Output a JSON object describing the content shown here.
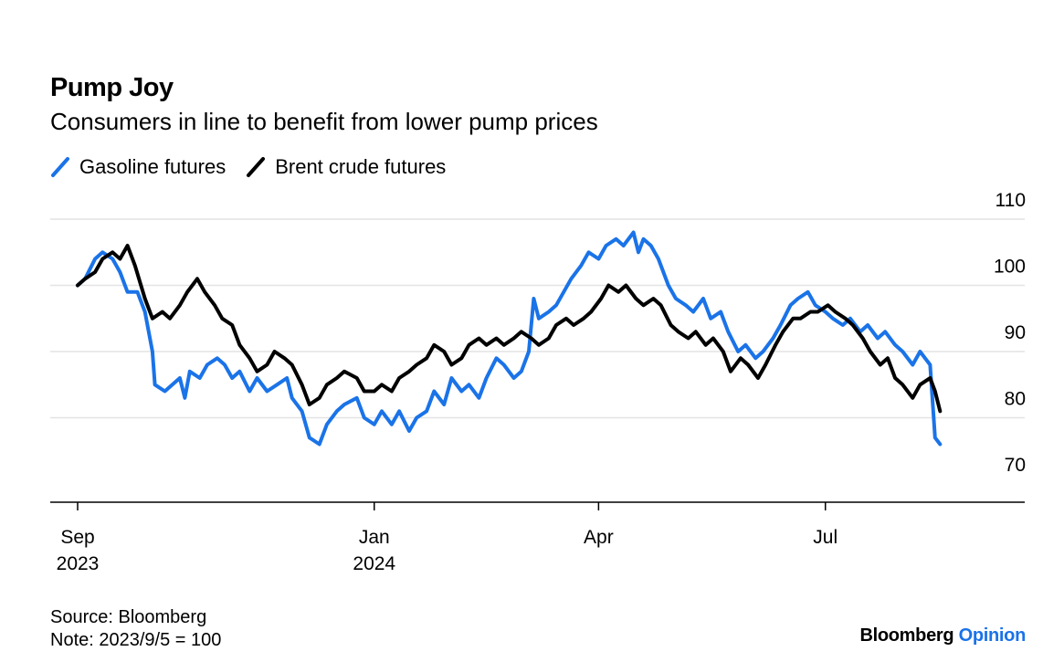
{
  "header": {
    "title": "Pump Joy",
    "subtitle": "Consumers in line to benefit from lower pump prices"
  },
  "legend": {
    "items": [
      {
        "label": "Gasoline futures",
        "color": "#1a73e8"
      },
      {
        "label": "Brent crude futures",
        "color": "#000000"
      }
    ]
  },
  "footer": {
    "source": "Source: Bloomberg",
    "note": "Note: 2023/9/5 = 100",
    "brand_main": "Bloomberg",
    "brand_accent": "Opinion"
  },
  "chart_data": {
    "type": "line",
    "title": "Pump Joy",
    "subtitle": "Consumers in line to benefit from lower pump prices",
    "xlabel": "",
    "ylabel": "",
    "ylim": [
      70,
      110
    ],
    "yticks": [
      70,
      80,
      90,
      100,
      110
    ],
    "y_axis_position": "right",
    "grid": "horizontal",
    "legend_position": "top-left",
    "xlim": [
      "2023-09-05",
      "2024-08-17"
    ],
    "xticks": [
      {
        "date": "2023-09-05",
        "line1": "Sep",
        "line2": "2023"
      },
      {
        "date": "2024-01-02",
        "line1": "Jan",
        "line2": "2024"
      },
      {
        "date": "2024-04-01",
        "line1": "Apr",
        "line2": ""
      },
      {
        "date": "2024-07-01",
        "line1": "Jul",
        "line2": ""
      }
    ],
    "series": [
      {
        "name": "Gasoline futures",
        "color": "#1a73e8",
        "points": [
          [
            "2023-09-05",
            100
          ],
          [
            "2023-09-08",
            101
          ],
          [
            "2023-09-12",
            104
          ],
          [
            "2023-09-15",
            105
          ],
          [
            "2023-09-19",
            104
          ],
          [
            "2023-09-22",
            102
          ],
          [
            "2023-09-25",
            99
          ],
          [
            "2023-09-29",
            99
          ],
          [
            "2023-10-02",
            96
          ],
          [
            "2023-10-05",
            90
          ],
          [
            "2023-10-06",
            85
          ],
          [
            "2023-10-10",
            84
          ],
          [
            "2023-10-13",
            85
          ],
          [
            "2023-10-16",
            86
          ],
          [
            "2023-10-18",
            83
          ],
          [
            "2023-10-20",
            87
          ],
          [
            "2023-10-24",
            86
          ],
          [
            "2023-10-27",
            88
          ],
          [
            "2023-10-31",
            89
          ],
          [
            "2023-11-03",
            88
          ],
          [
            "2023-11-06",
            86
          ],
          [
            "2023-11-09",
            87
          ],
          [
            "2023-11-13",
            84
          ],
          [
            "2023-11-16",
            86
          ],
          [
            "2023-11-20",
            84
          ],
          [
            "2023-11-24",
            85
          ],
          [
            "2023-11-28",
            86
          ],
          [
            "2023-11-30",
            83
          ],
          [
            "2023-12-04",
            81
          ],
          [
            "2023-12-07",
            77
          ],
          [
            "2023-12-11",
            76
          ],
          [
            "2023-12-14",
            79
          ],
          [
            "2023-12-18",
            81
          ],
          [
            "2023-12-21",
            82
          ],
          [
            "2023-12-26",
            83
          ],
          [
            "2023-12-29",
            80
          ],
          [
            "2024-01-02",
            79
          ],
          [
            "2024-01-05",
            81
          ],
          [
            "2024-01-09",
            79
          ],
          [
            "2024-01-12",
            81
          ],
          [
            "2024-01-16",
            78
          ],
          [
            "2024-01-19",
            80
          ],
          [
            "2024-01-23",
            81
          ],
          [
            "2024-01-26",
            84
          ],
          [
            "2024-01-30",
            82
          ],
          [
            "2024-02-02",
            86
          ],
          [
            "2024-02-06",
            84
          ],
          [
            "2024-02-09",
            85
          ],
          [
            "2024-02-13",
            83
          ],
          [
            "2024-02-16",
            86
          ],
          [
            "2024-02-20",
            89
          ],
          [
            "2024-02-23",
            88
          ],
          [
            "2024-02-27",
            86
          ],
          [
            "2024-03-01",
            87
          ],
          [
            "2024-03-04",
            90
          ],
          [
            "2024-03-06",
            98
          ],
          [
            "2024-03-08",
            95
          ],
          [
            "2024-03-12",
            96
          ],
          [
            "2024-03-15",
            97
          ],
          [
            "2024-03-18",
            99
          ],
          [
            "2024-03-21",
            101
          ],
          [
            "2024-03-25",
            103
          ],
          [
            "2024-03-28",
            105
          ],
          [
            "2024-04-01",
            104
          ],
          [
            "2024-04-04",
            106
          ],
          [
            "2024-04-08",
            107
          ],
          [
            "2024-04-11",
            106
          ],
          [
            "2024-04-15",
            108
          ],
          [
            "2024-04-17",
            105
          ],
          [
            "2024-04-19",
            107
          ],
          [
            "2024-04-22",
            106
          ],
          [
            "2024-04-25",
            104
          ],
          [
            "2024-04-29",
            100
          ],
          [
            "2024-05-02",
            98
          ],
          [
            "2024-05-06",
            97
          ],
          [
            "2024-05-09",
            96
          ],
          [
            "2024-05-13",
            98
          ],
          [
            "2024-05-16",
            95
          ],
          [
            "2024-05-20",
            96
          ],
          [
            "2024-05-23",
            93
          ],
          [
            "2024-05-27",
            90
          ],
          [
            "2024-05-30",
            91
          ],
          [
            "2024-06-03",
            89
          ],
          [
            "2024-06-06",
            90
          ],
          [
            "2024-06-10",
            92
          ],
          [
            "2024-06-13",
            94
          ],
          [
            "2024-06-17",
            97
          ],
          [
            "2024-06-20",
            98
          ],
          [
            "2024-06-24",
            99
          ],
          [
            "2024-06-27",
            97
          ],
          [
            "2024-07-01",
            96
          ],
          [
            "2024-07-04",
            95
          ],
          [
            "2024-07-08",
            94
          ],
          [
            "2024-07-11",
            95
          ],
          [
            "2024-07-15",
            93
          ],
          [
            "2024-07-18",
            94
          ],
          [
            "2024-07-22",
            92
          ],
          [
            "2024-07-25",
            93
          ],
          [
            "2024-07-29",
            91
          ],
          [
            "2024-08-01",
            90
          ],
          [
            "2024-08-05",
            88
          ],
          [
            "2024-08-08",
            90
          ],
          [
            "2024-08-12",
            88
          ],
          [
            "2024-08-14",
            77
          ],
          [
            "2024-08-16",
            76
          ]
        ]
      },
      {
        "name": "Brent crude futures",
        "color": "#000000",
        "points": [
          [
            "2023-09-05",
            100
          ],
          [
            "2023-09-08",
            101
          ],
          [
            "2023-09-12",
            102
          ],
          [
            "2023-09-15",
            104
          ],
          [
            "2023-09-19",
            105
          ],
          [
            "2023-09-22",
            104
          ],
          [
            "2023-09-25",
            106
          ],
          [
            "2023-09-28",
            103
          ],
          [
            "2023-10-02",
            98
          ],
          [
            "2023-10-05",
            95
          ],
          [
            "2023-10-09",
            96
          ],
          [
            "2023-10-12",
            95
          ],
          [
            "2023-10-16",
            97
          ],
          [
            "2023-10-19",
            99
          ],
          [
            "2023-10-23",
            101
          ],
          [
            "2023-10-26",
            99
          ],
          [
            "2023-10-30",
            97
          ],
          [
            "2023-11-02",
            95
          ],
          [
            "2023-11-06",
            94
          ],
          [
            "2023-11-09",
            91
          ],
          [
            "2023-11-13",
            89
          ],
          [
            "2023-11-16",
            87
          ],
          [
            "2023-11-20",
            88
          ],
          [
            "2023-11-23",
            90
          ],
          [
            "2023-11-27",
            89
          ],
          [
            "2023-11-30",
            88
          ],
          [
            "2023-12-04",
            85
          ],
          [
            "2023-12-07",
            82
          ],
          [
            "2023-12-11",
            83
          ],
          [
            "2023-12-14",
            85
          ],
          [
            "2023-12-18",
            86
          ],
          [
            "2023-12-21",
            87
          ],
          [
            "2023-12-26",
            86
          ],
          [
            "2023-12-29",
            84
          ],
          [
            "2024-01-02",
            84
          ],
          [
            "2024-01-05",
            85
          ],
          [
            "2024-01-09",
            84
          ],
          [
            "2024-01-12",
            86
          ],
          [
            "2024-01-16",
            87
          ],
          [
            "2024-01-19",
            88
          ],
          [
            "2024-01-23",
            89
          ],
          [
            "2024-01-26",
            91
          ],
          [
            "2024-01-30",
            90
          ],
          [
            "2024-02-02",
            88
          ],
          [
            "2024-02-06",
            89
          ],
          [
            "2024-02-09",
            91
          ],
          [
            "2024-02-13",
            92
          ],
          [
            "2024-02-16",
            91
          ],
          [
            "2024-02-20",
            92
          ],
          [
            "2024-02-23",
            91
          ],
          [
            "2024-02-27",
            92
          ],
          [
            "2024-03-01",
            93
          ],
          [
            "2024-03-05",
            92
          ],
          [
            "2024-03-08",
            91
          ],
          [
            "2024-03-12",
            92
          ],
          [
            "2024-03-15",
            94
          ],
          [
            "2024-03-19",
            95
          ],
          [
            "2024-03-22",
            94
          ],
          [
            "2024-03-26",
            95
          ],
          [
            "2024-03-29",
            96
          ],
          [
            "2024-04-02",
            98
          ],
          [
            "2024-04-05",
            100
          ],
          [
            "2024-04-09",
            99
          ],
          [
            "2024-04-12",
            100
          ],
          [
            "2024-04-16",
            98
          ],
          [
            "2024-04-19",
            97
          ],
          [
            "2024-04-23",
            98
          ],
          [
            "2024-04-26",
            97
          ],
          [
            "2024-04-30",
            94
          ],
          [
            "2024-05-03",
            93
          ],
          [
            "2024-05-07",
            92
          ],
          [
            "2024-05-10",
            93
          ],
          [
            "2024-05-14",
            91
          ],
          [
            "2024-05-17",
            92
          ],
          [
            "2024-05-21",
            90
          ],
          [
            "2024-05-24",
            87
          ],
          [
            "2024-05-28",
            89
          ],
          [
            "2024-05-31",
            88
          ],
          [
            "2024-06-04",
            86
          ],
          [
            "2024-06-07",
            88
          ],
          [
            "2024-06-11",
            91
          ],
          [
            "2024-06-14",
            93
          ],
          [
            "2024-06-18",
            95
          ],
          [
            "2024-06-21",
            95
          ],
          [
            "2024-06-25",
            96
          ],
          [
            "2024-06-28",
            96
          ],
          [
            "2024-07-02",
            97
          ],
          [
            "2024-07-05",
            96
          ],
          [
            "2024-07-09",
            95
          ],
          [
            "2024-07-12",
            94
          ],
          [
            "2024-07-16",
            92
          ],
          [
            "2024-07-19",
            90
          ],
          [
            "2024-07-23",
            88
          ],
          [
            "2024-07-26",
            89
          ],
          [
            "2024-07-29",
            86
          ],
          [
            "2024-08-01",
            85
          ],
          [
            "2024-08-05",
            83
          ],
          [
            "2024-08-08",
            85
          ],
          [
            "2024-08-12",
            86
          ],
          [
            "2024-08-14",
            84
          ],
          [
            "2024-08-16",
            81
          ]
        ]
      }
    ]
  }
}
